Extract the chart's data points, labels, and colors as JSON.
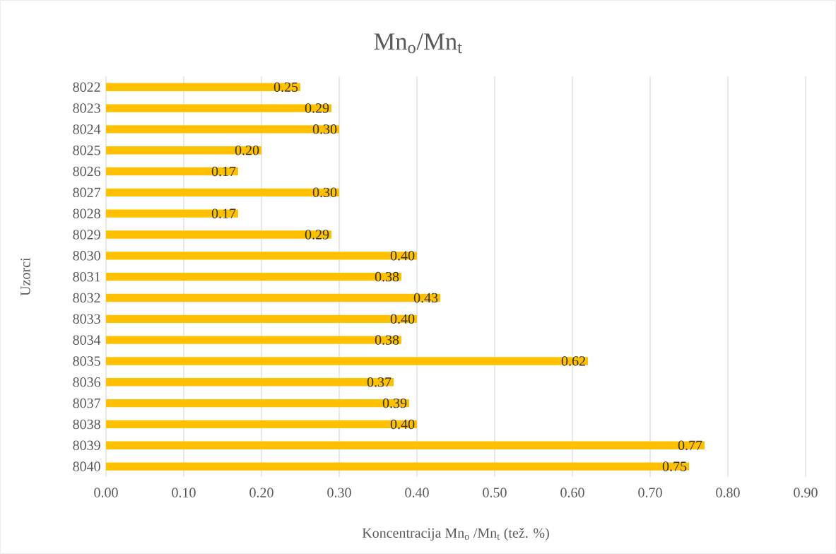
{
  "chart_data": {
    "type": "bar",
    "orientation": "horizontal",
    "title": "Mn$_{o}$/Mn$_{t}$",
    "xlabel": "Koncentracija Mn$_{o}$ /Mn$_{t}$ (tež. %)",
    "ylabel": "Uzorci",
    "categories": [
      "8022",
      "8023",
      "8024",
      "8025",
      "8026",
      "8027",
      "8028",
      "8029",
      "8030",
      "8031",
      "8032",
      "8033",
      "8034",
      "8035",
      "8036",
      "8037",
      "8038",
      "8039",
      "8040"
    ],
    "values": [
      0.25,
      0.29,
      0.3,
      0.2,
      0.17,
      0.3,
      0.17,
      0.29,
      0.4,
      0.38,
      0.43,
      0.4,
      0.38,
      0.62,
      0.37,
      0.39,
      0.4,
      0.77,
      0.75
    ],
    "value_labels": [
      "0.25",
      "0.29",
      "0.30",
      "0.20",
      "0.17",
      "0.30",
      "0.17",
      "0.29",
      "0.40",
      "0.38",
      "0.43",
      "0.40",
      "0.38",
      "0.62",
      "0.37",
      "0.39",
      "0.40",
      "0.77",
      "0.75"
    ],
    "color": "#ffc000",
    "xlim": [
      0,
      0.9
    ],
    "xticks": [
      {
        "value": 0,
        "label": "0.00"
      },
      {
        "value": 0.1,
        "label": "0.10"
      },
      {
        "value": 0.2,
        "label": "0.20"
      },
      {
        "value": 0.3,
        "label": "0.30"
      },
      {
        "value": 0.4,
        "label": "0.40"
      },
      {
        "value": 0.5,
        "label": "0.50"
      },
      {
        "value": 0.6,
        "label": "0.60"
      },
      {
        "value": 0.7,
        "label": "0.70"
      },
      {
        "value": 0.8,
        "label": "0.80"
      },
      {
        "value": 0.9,
        "label": "0.90"
      }
    ],
    "grid": "x"
  }
}
